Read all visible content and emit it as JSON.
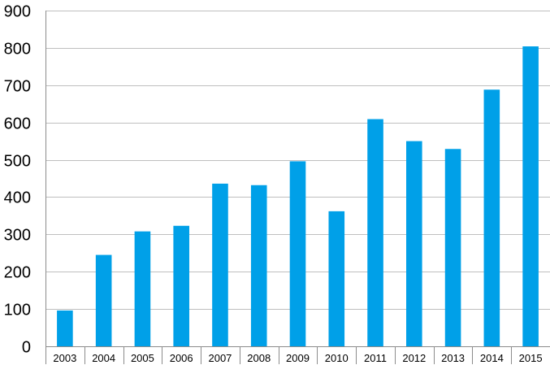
{
  "chart_data": {
    "type": "bar",
    "categories": [
      "2003",
      "2004",
      "2005",
      "2006",
      "2007",
      "2008",
      "2009",
      "2010",
      "2011",
      "2012",
      "2013",
      "2014",
      "2015"
    ],
    "values": [
      96,
      245,
      308,
      323,
      436,
      432,
      496,
      362,
      609,
      550,
      529,
      688,
      804
    ],
    "title": "",
    "xlabel": "",
    "ylabel": "",
    "ylim": [
      0,
      900
    ],
    "yticks": [
      0,
      100,
      200,
      300,
      400,
      500,
      600,
      700,
      800,
      900
    ],
    "grid": true,
    "legend": "none",
    "bar_color": "#00A0E8"
  }
}
